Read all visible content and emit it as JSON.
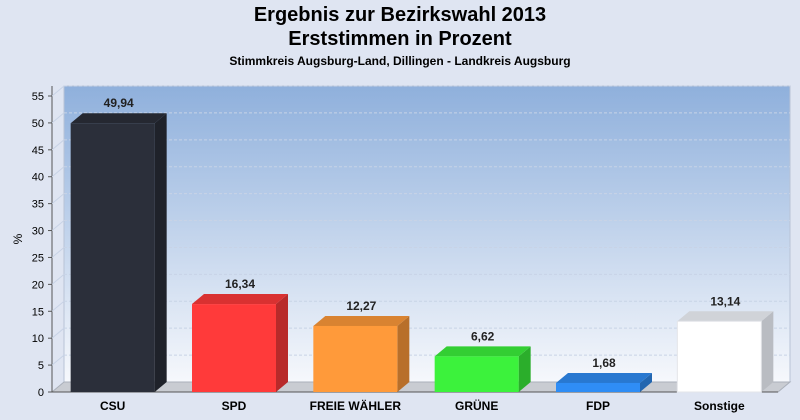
{
  "chart_data": {
    "type": "bar",
    "title": "Ergebnis zur Bezirkswahl 2013",
    "subtitle": "Erststimmen in Prozent",
    "caption": "Stimmkreis Augsburg-Land, Dillingen - Landkreis Augsburg",
    "ylabel": "%",
    "xlabel": "",
    "ylim": [
      0,
      55
    ],
    "yticks": [
      0,
      5,
      10,
      15,
      20,
      25,
      30,
      35,
      40,
      45,
      50,
      55
    ],
    "grid": true,
    "categories": [
      "CSU",
      "SPD",
      "FREIE WÄHLER",
      "GRÜNE",
      "FDP",
      "Sonstige"
    ],
    "values": [
      49.94,
      16.34,
      12.27,
      6.62,
      1.68,
      13.14
    ],
    "value_labels": [
      "49,94",
      "16,34",
      "12,27",
      "6,62",
      "1,68",
      "13,14"
    ],
    "colors": [
      "#2b2f3a",
      "#ff3a3a",
      "#ff9a3a",
      "#3cf23c",
      "#2f8df5",
      "#ffffff"
    ]
  }
}
